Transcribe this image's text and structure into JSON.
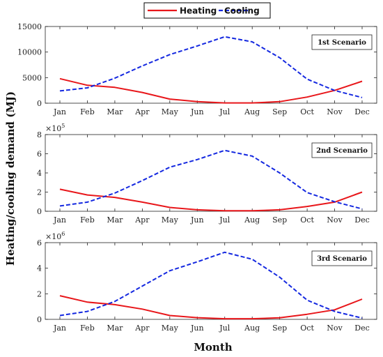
{
  "figure": {
    "ylabel": "Heating/cooling demand (MJ)",
    "xlabel": "Month"
  },
  "legend": {
    "heating_label": "Heating",
    "cooling_label": "Cooling"
  },
  "colors": {
    "heating": "#e8161a",
    "cooling": "#1428e0"
  },
  "chart_data": [
    {
      "type": "line",
      "label": "1st Scenario",
      "categories": [
        "Jan",
        "Feb",
        "Mar",
        "Apr",
        "May",
        "Jun",
        "Jul",
        "Aug",
        "Sep",
        "Oct",
        "Nov",
        "Dec"
      ],
      "ylim": [
        0,
        15000
      ],
      "yticks": [
        0,
        5000,
        10000,
        15000
      ],
      "ytick_labels": [
        "0",
        "5000",
        "10000",
        "15000"
      ],
      "multiplier_base": "",
      "multiplier_exp": "",
      "series": [
        {
          "name": "Heating",
          "values": [
            4800,
            3500,
            3100,
            2100,
            800,
            300,
            50,
            50,
            300,
            1200,
            2500,
            4300
          ]
        },
        {
          "name": "Cooling",
          "values": [
            2400,
            3000,
            4900,
            7300,
            9500,
            11200,
            13000,
            12000,
            8900,
            4700,
            2500,
            1100
          ]
        }
      ]
    },
    {
      "type": "line",
      "label": "2nd Scenario",
      "categories": [
        "Jan",
        "Feb",
        "Mar",
        "Apr",
        "May",
        "Jun",
        "Jul",
        "Aug",
        "Sep",
        "Oct",
        "Nov",
        "Dec"
      ],
      "ylim": [
        0,
        800000
      ],
      "yticks": [
        0,
        200000,
        400000,
        600000,
        800000
      ],
      "ytick_labels": [
        "0",
        "2",
        "4",
        "6",
        "8"
      ],
      "multiplier_base": "×10",
      "multiplier_exp": "5",
      "series": [
        {
          "name": "Heating",
          "values": [
            230000,
            170000,
            145000,
            95000,
            40000,
            15000,
            5000,
            5000,
            15000,
            50000,
            95000,
            200000
          ]
        },
        {
          "name": "Cooling",
          "values": [
            55000,
            95000,
            190000,
            320000,
            460000,
            540000,
            635000,
            575000,
            400000,
            195000,
            100000,
            25000
          ]
        }
      ]
    },
    {
      "type": "line",
      "label": "3rd Scenario",
      "categories": [
        "Jan",
        "Feb",
        "Mar",
        "Apr",
        "May",
        "Jun",
        "Jul",
        "Aug",
        "Sep",
        "Oct",
        "Nov",
        "Dec"
      ],
      "ylim": [
        0,
        6000000
      ],
      "yticks": [
        0,
        2000000,
        4000000,
        6000000
      ],
      "ytick_labels": [
        "0",
        "2",
        "4",
        "6"
      ],
      "multiplier_base": "×10",
      "multiplier_exp": "6",
      "series": [
        {
          "name": "Heating",
          "values": [
            1850000,
            1350000,
            1150000,
            800000,
            300000,
            130000,
            50000,
            50000,
            120000,
            400000,
            750000,
            1580000
          ]
        },
        {
          "name": "Cooling",
          "values": [
            300000,
            620000,
            1400000,
            2600000,
            3800000,
            4500000,
            5250000,
            4700000,
            3300000,
            1500000,
            620000,
            100000
          ]
        }
      ]
    }
  ]
}
